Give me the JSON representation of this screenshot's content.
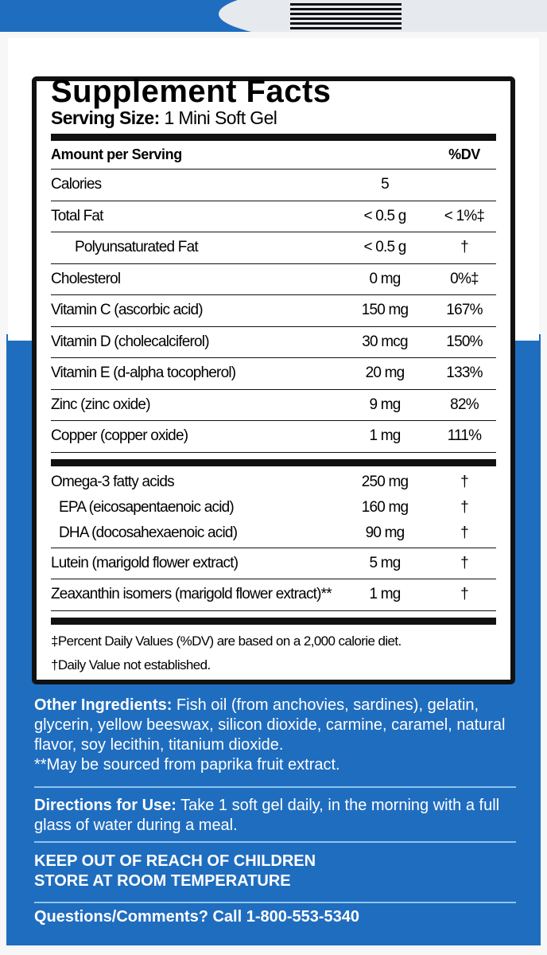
{
  "title": "Supplement Facts",
  "serving": {
    "label": "Serving Size:",
    "value": "1 Mini Soft Gel"
  },
  "header": {
    "amount": "Amount per Serving",
    "dv": "%DV"
  },
  "rows": [
    {
      "name": "Calories",
      "amount": "5",
      "dv": ""
    },
    {
      "name": "Total Fat",
      "amount": "< 0.5 g",
      "dv": "< 1%‡"
    },
    {
      "name": "Polyunsaturated Fat",
      "amount": "< 0.5 g",
      "dv": "†"
    },
    {
      "name": "Cholesterol",
      "amount": "0 mg",
      "dv": "0%‡"
    },
    {
      "name": "Vitamin C (ascorbic acid)",
      "amount": "150 mg",
      "dv": "167%"
    },
    {
      "name": "Vitamin D (cholecalciferol)",
      "amount": "30 mcg",
      "dv": "150%"
    },
    {
      "name": "Vitamin E (d-alpha tocopherol)",
      "amount": "20 mg",
      "dv": "133%"
    },
    {
      "name": "Zinc (zinc oxide)",
      "amount": "9 mg",
      "dv": "82%"
    },
    {
      "name": "Copper (copper oxide)",
      "amount": "1 mg",
      "dv": "111%"
    }
  ],
  "omega": [
    {
      "name": "Omega-3 fatty acids",
      "amount": "250 mg",
      "dv": "†"
    },
    {
      "name": "EPA (eicosapentaenoic acid)",
      "amount": "160 mg",
      "dv": "†"
    },
    {
      "name": "DHA (docosahexaenoic acid)",
      "amount": "90 mg",
      "dv": "†"
    }
  ],
  "rows2": [
    {
      "name": "Lutein (marigold flower extract)",
      "amount": "5 mg",
      "dv": "†"
    },
    {
      "name": "Zeaxanthin isomers (marigold flower extract)**",
      "amount": "1 mg",
      "dv": "†"
    }
  ],
  "footnotes": [
    "‡Percent Daily Values (%DV) are based on a 2,000 calorie diet.",
    "†Daily Value not established."
  ],
  "other": {
    "label": "Other Ingredients:",
    "text": " Fish oil (from anchovies, sardines), gelatin, glycerin, yellow beeswax, silicon dioxide, carmine, caramel, natural flavor, soy lecithin, titanium dioxide.",
    "note": "**May be sourced from paprika fruit extract."
  },
  "directions": {
    "label": "Directions for Use:",
    "text": " Take 1 soft gel daily, in the morning with a full glass of water during a meal."
  },
  "warnings": [
    "KEEP OUT OF REACH OF CHILDREN",
    "STORE AT ROOM TEMPERATURE"
  ],
  "contact": "Questions/Comments? Call 1-800-553-5340",
  "colors": {
    "brand_blue": "#1f6dbf",
    "rule": "#8fc4ee"
  }
}
